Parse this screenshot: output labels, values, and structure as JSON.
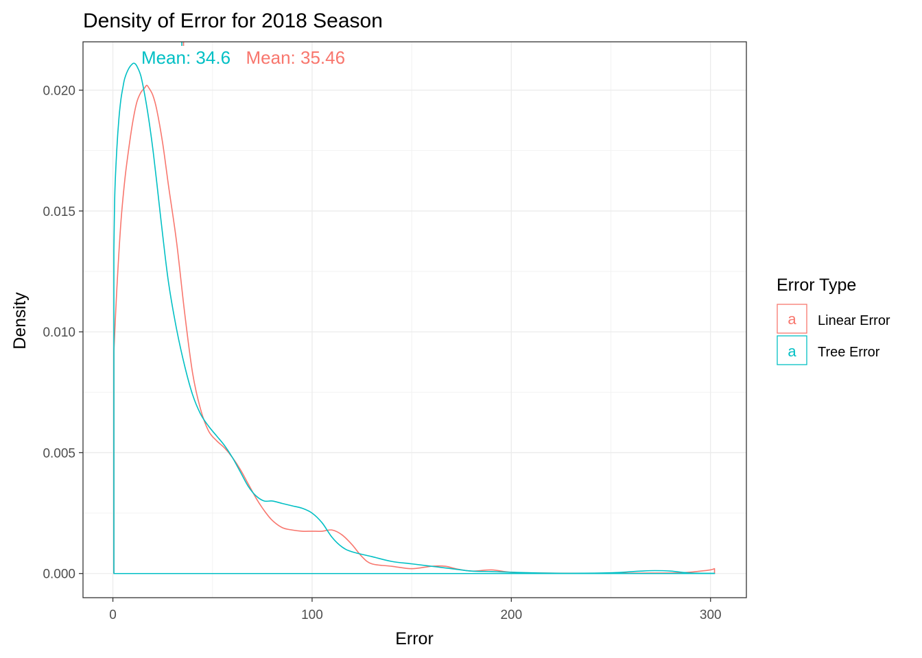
{
  "chart_data": {
    "type": "line",
    "title": "Density of Error for 2018 Season",
    "xlabel": "Error",
    "ylabel": "Density",
    "xlim": [
      -15,
      318
    ],
    "ylim": [
      -0.001,
      0.022
    ],
    "x_ticks": [
      0,
      100,
      200,
      300
    ],
    "x_tick_labels": [
      "0",
      "100",
      "200",
      "300"
    ],
    "y_ticks": [
      0,
      0.005,
      0.01,
      0.015,
      0.02
    ],
    "y_tick_labels": [
      "0.000",
      "0.005",
      "0.010",
      "0.015",
      "0.020"
    ],
    "grid": true,
    "legend": {
      "title": "Error Type",
      "position": "right",
      "key_letter": "a",
      "entries": [
        "Linear Error",
        "Tree Error"
      ]
    },
    "series": [
      {
        "name": "Linear Error",
        "color": "#F8766D",
        "x": [
          0.5,
          2,
          4,
          6,
          8,
          10,
          12,
          14,
          16,
          17,
          18,
          20,
          22,
          25,
          28,
          32,
          36,
          40,
          44,
          48,
          52,
          56,
          60,
          64,
          68,
          72,
          76,
          80,
          85,
          90,
          95,
          100,
          105,
          110,
          115,
          120,
          125,
          130,
          140,
          150,
          160,
          167,
          172,
          180,
          190,
          200,
          215,
          230,
          250,
          270,
          285,
          295,
          300,
          302
        ],
        "y": [
          0.0092,
          0.0118,
          0.0145,
          0.0163,
          0.0176,
          0.0187,
          0.0195,
          0.0199,
          0.0201,
          0.0202,
          0.0201,
          0.0198,
          0.0192,
          0.0178,
          0.016,
          0.0137,
          0.0108,
          0.0083,
          0.0068,
          0.0059,
          0.0055,
          0.0052,
          0.0048,
          0.0043,
          0.0037,
          0.0031,
          0.0026,
          0.0022,
          0.0019,
          0.0018,
          0.00175,
          0.00175,
          0.00175,
          0.0018,
          0.0016,
          0.0012,
          0.0007,
          0.0004,
          0.0003,
          0.0002,
          0.0003,
          0.0003,
          0.0002,
          0.0001,
          0.00015,
          5e-05,
          2e-05,
          1e-05,
          1e-05,
          2e-05,
          3e-05,
          0.0001,
          0.00015,
          0.0002
        ]
      },
      {
        "name": "Tree Error",
        "color": "#00BFC4",
        "x": [
          0.5,
          1,
          2,
          3,
          4,
          5,
          6,
          8,
          10,
          11,
          12,
          14,
          16,
          18,
          20,
          22,
          25,
          28,
          32,
          36,
          40,
          44,
          48,
          52,
          56,
          60,
          64,
          68,
          72,
          76,
          80,
          85,
          90,
          95,
          100,
          105,
          110,
          115,
          120,
          130,
          140,
          150,
          160,
          170,
          180,
          190,
          200,
          215,
          230,
          250,
          265,
          272,
          280,
          290,
          300,
          302
        ],
        "y": [
          0.0134,
          0.0158,
          0.0176,
          0.0188,
          0.0196,
          0.0201,
          0.0205,
          0.0209,
          0.0211,
          0.0211,
          0.021,
          0.0206,
          0.0198,
          0.0188,
          0.0176,
          0.0162,
          0.014,
          0.012,
          0.0101,
          0.0086,
          0.0074,
          0.0066,
          0.0061,
          0.0057,
          0.0053,
          0.0048,
          0.0042,
          0.0036,
          0.0032,
          0.003,
          0.003,
          0.0029,
          0.0028,
          0.0027,
          0.0025,
          0.0021,
          0.0015,
          0.0011,
          0.0009,
          0.0007,
          0.0005,
          0.0004,
          0.0003,
          0.0002,
          0.0001,
          8e-05,
          5e-05,
          2e-05,
          1e-05,
          3e-05,
          0.0001,
          0.00012,
          0.0001,
          2e-05,
          1e-05,
          1e-05
        ]
      }
    ],
    "annotations": [
      {
        "text": "Mean: 34.6",
        "x": 34.6,
        "color": "#00BFC4"
      },
      {
        "text": "Mean: 35.46",
        "x": 35.46,
        "color": "#F8766D"
      }
    ]
  }
}
